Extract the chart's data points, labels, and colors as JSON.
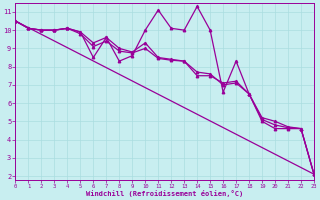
{
  "background_color": "#c8eef0",
  "grid_color": "#aadde0",
  "line_color": "#990099",
  "marker_color": "#990099",
  "xlabel": "Windchill (Refroidissement éolien,°C)",
  "ylabel_ticks": [
    2,
    3,
    4,
    5,
    6,
    7,
    8,
    9,
    10,
    11
  ],
  "xtick_labels": [
    "0",
    "1",
    "2",
    "3",
    "4",
    "5",
    "6",
    "7",
    "8",
    "9",
    "10",
    "11",
    "12",
    "13",
    "14",
    "15",
    "16",
    "17",
    "18",
    "19",
    "20",
    "21",
    "22",
    "23"
  ],
  "series1_x": [
    0,
    1,
    2,
    3,
    4,
    5,
    6,
    7,
    8,
    9,
    10,
    11,
    12,
    13,
    14,
    15,
    16,
    17,
    18,
    19,
    20,
    21,
    22,
    23
  ],
  "series1_y": [
    10.5,
    10.1,
    10.0,
    10.0,
    10.1,
    9.9,
    8.5,
    9.6,
    8.3,
    8.6,
    10.0,
    11.1,
    10.1,
    10.0,
    11.3,
    10.0,
    6.6,
    8.3,
    6.5,
    5.0,
    4.6,
    4.6,
    4.6,
    2.1
  ],
  "series2_x": [
    0,
    1,
    2,
    3,
    4,
    5,
    6,
    7,
    8,
    9,
    10,
    11,
    12,
    13,
    14,
    15,
    16,
    17,
    18,
    19,
    20,
    21,
    22,
    23
  ],
  "series2_y": [
    10.5,
    10.1,
    10.0,
    10.0,
    10.1,
    9.9,
    9.3,
    9.6,
    9.0,
    8.8,
    9.3,
    8.5,
    8.4,
    8.3,
    7.5,
    7.5,
    7.1,
    7.2,
    6.5,
    5.2,
    5.0,
    4.7,
    4.6,
    2.1
  ],
  "series3_x": [
    0,
    1,
    2,
    3,
    4,
    5,
    6,
    7,
    8,
    9,
    10,
    11,
    12,
    13,
    14,
    15,
    16,
    17,
    18,
    19,
    20,
    21,
    22,
    23
  ],
  "series3_y": [
    10.5,
    10.1,
    10.0,
    10.0,
    10.1,
    9.8,
    9.1,
    9.4,
    8.85,
    8.75,
    9.0,
    8.45,
    8.35,
    8.3,
    7.7,
    7.6,
    7.0,
    7.1,
    6.5,
    5.1,
    4.8,
    4.65,
    4.6,
    2.1
  ],
  "series4_x": [
    0,
    23
  ],
  "series4_y": [
    10.5,
    2.1
  ],
  "xlim": [
    0,
    23
  ],
  "ylim": [
    1.8,
    11.5
  ]
}
